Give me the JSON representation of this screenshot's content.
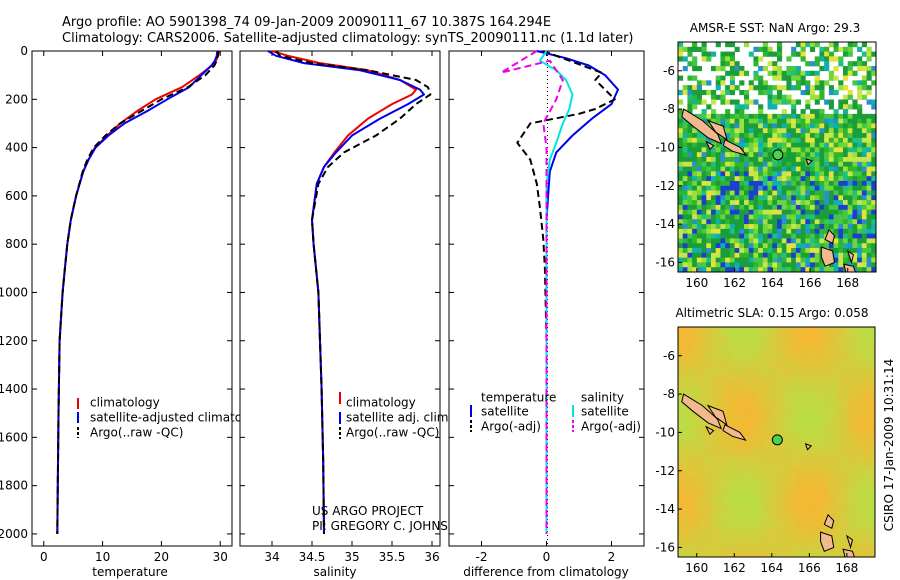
{
  "header": {
    "line1": "Argo profile: AO 5901398_74 09-Jan-2009 20090111_67 10.387S 164.294E",
    "line2": "Climatology: CARS2006. Satellite-adjusted climatology: synTS_20090111.nc (1.1d later)"
  },
  "credits": {
    "project": "US ARGO PROJECT",
    "pi": "PI: GREGORY C. JOHNSON",
    "stamp": "CSIRO 17-Jan-2009 10:31:14"
  },
  "colors": {
    "climatology": "#ee0000",
    "satellite": "#0000ee",
    "argo": "#000000",
    "sal_satellite": "#00e5e5",
    "sal_argo": "#ee00ee",
    "land": "#f2b98f",
    "float_marker": "#4bd14b"
  },
  "chart_data": [
    {
      "type": "line",
      "id": "temperature",
      "xlabel": "temperature",
      "xlim": [
        -2,
        32
      ],
      "ylim": [
        2050,
        0
      ],
      "y_reversed": true,
      "xticks": [
        0,
        10,
        20,
        30
      ],
      "yticks": [
        0,
        200,
        400,
        600,
        800,
        1000,
        1200,
        1400,
        1600,
        1800,
        2000
      ],
      "legend": {
        "position": "bottom-right",
        "entries": [
          "climatology",
          "satellite-adjusted climatology",
          "Argo(..raw -QC)"
        ]
      },
      "series": [
        {
          "name": "climatology",
          "style": "solid",
          "x": [
            29.8,
            29.6,
            29.3,
            28.6,
            26.5,
            23.5,
            19.0,
            15.8,
            13.0,
            10.8,
            8.7,
            7.6,
            6.7,
            5.5,
            4.6,
            4.0,
            3.6,
            3.2,
            2.7,
            2.5,
            2.3
          ],
          "y": [
            0,
            20,
            40,
            60,
            100,
            150,
            200,
            250,
            300,
            350,
            400,
            450,
            500,
            600,
            700,
            800,
            900,
            1000,
            1200,
            1500,
            2000
          ]
        },
        {
          "name": "satellite-adjusted climatology",
          "style": "solid",
          "x": [
            29.5,
            29.4,
            29.1,
            28.5,
            26.8,
            24.7,
            21.0,
            17.5,
            13.7,
            11.0,
            8.8,
            7.6,
            6.7,
            5.5,
            4.6,
            4.0,
            3.6,
            3.2,
            2.7,
            2.5,
            2.3
          ],
          "y": [
            0,
            20,
            40,
            60,
            100,
            150,
            200,
            250,
            300,
            350,
            400,
            450,
            500,
            600,
            700,
            800,
            900,
            1000,
            1200,
            1500,
            2000
          ]
        },
        {
          "name": "Argo(..raw -QC)",
          "style": "dashed",
          "x": [
            29.7,
            29.6,
            29.4,
            29.0,
            27.5,
            24.5,
            20.0,
            16.5,
            13.0,
            10.5,
            8.5,
            7.4,
            6.6,
            5.5,
            4.6,
            4.0,
            3.6,
            3.2,
            2.7,
            2.5,
            2.3
          ],
          "y": [
            0,
            20,
            40,
            60,
            100,
            150,
            200,
            250,
            300,
            350,
            400,
            450,
            500,
            600,
            700,
            800,
            900,
            1000,
            1200,
            1500,
            2000
          ]
        }
      ]
    },
    {
      "type": "line",
      "id": "salinity",
      "xlabel": "salinity",
      "xlim": [
        33.6,
        36.1
      ],
      "ylim": [
        2050,
        0
      ],
      "y_reversed": true,
      "xticks": [
        34,
        34.5,
        35,
        35.5,
        36
      ],
      "legend": {
        "position": "bottom-right",
        "entries": [
          "climatology",
          "satellite adj. clim.",
          "Argo(..raw -QC)"
        ]
      },
      "series": [
        {
          "name": "climatology",
          "style": "solid",
          "x": [
            34.0,
            34.2,
            34.6,
            35.2,
            35.6,
            35.8,
            35.75,
            35.5,
            35.2,
            34.95,
            34.78,
            34.65,
            34.56,
            34.5,
            34.52,
            34.55,
            34.58,
            34.6,
            34.62,
            34.64,
            34.65
          ],
          "y": [
            0,
            20,
            50,
            80,
            120,
            160,
            180,
            220,
            280,
            350,
            420,
            480,
            550,
            700,
            800,
            900,
            1000,
            1200,
            1400,
            1700,
            2000
          ]
        },
        {
          "name": "satellite adj. clim.",
          "style": "solid",
          "x": [
            33.95,
            34.05,
            34.4,
            35.1,
            35.6,
            35.85,
            35.9,
            35.7,
            35.35,
            35.0,
            34.8,
            34.65,
            34.56,
            34.5,
            34.52,
            34.55,
            34.58,
            34.6,
            34.62,
            34.64,
            34.65
          ],
          "y": [
            0,
            20,
            50,
            80,
            120,
            160,
            180,
            220,
            280,
            350,
            420,
            480,
            550,
            700,
            800,
            900,
            1000,
            1200,
            1400,
            1700,
            2000
          ]
        },
        {
          "name": "Argo(..raw -QC)",
          "style": "dashed",
          "x": [
            34.05,
            34.1,
            34.5,
            35.2,
            35.8,
            35.95,
            35.98,
            35.8,
            35.6,
            35.3,
            34.9,
            34.7,
            34.58,
            34.5,
            34.52,
            34.55,
            34.58,
            34.6,
            34.62,
            34.64,
            34.65
          ],
          "y": [
            0,
            20,
            50,
            80,
            120,
            150,
            180,
            220,
            280,
            350,
            420,
            480,
            550,
            700,
            800,
            900,
            1000,
            1200,
            1400,
            1700,
            2000
          ]
        }
      ]
    },
    {
      "type": "line",
      "id": "difference",
      "xlabel": "difference from climatology",
      "xlim": [
        -3,
        3
      ],
      "ylim": [
        2050,
        0
      ],
      "y_reversed": true,
      "xticks": [
        -2,
        0,
        2
      ],
      "legend": {
        "position": "bottom-right",
        "entries": [
          "temperature",
          "satellite",
          "Argo(-adj)",
          "salinity",
          "satellite",
          "Argo(-adj)"
        ]
      },
      "series": [
        {
          "name": "temperature satellite",
          "style": "solid",
          "x": [
            -0.3,
            0.6,
            1.3,
            1.8,
            2.2,
            2.0,
            1.4,
            0.8,
            0.3,
            0.1,
            0.05,
            0.0,
            0.0,
            0.0,
            0.0,
            0.0,
            0.0
          ],
          "y": [
            0,
            30,
            60,
            100,
            160,
            220,
            280,
            350,
            420,
            500,
            600,
            700,
            800,
            1000,
            1400,
            1700,
            2000
          ]
        },
        {
          "name": "temperature Argo(-adj)",
          "style": "dashed",
          "x": [
            -0.1,
            0.9,
            1.7,
            1.5,
            2.1,
            1.5,
            1.0,
            -0.5,
            -0.9,
            -0.5,
            -0.3,
            -0.2,
            -0.1,
            -0.05,
            0.0,
            0.0,
            0.0
          ],
          "y": [
            0,
            50,
            90,
            120,
            200,
            240,
            260,
            300,
            380,
            450,
            550,
            650,
            780,
            900,
            1200,
            1600,
            2000
          ]
        },
        {
          "name": "salinity satellite",
          "style": "solid",
          "x": [
            0.0,
            -0.2,
            0.3,
            0.6,
            0.8,
            0.7,
            0.5,
            0.3,
            0.1,
            0.0,
            0.0,
            0.0,
            0.0,
            0.0
          ],
          "y": [
            0,
            40,
            80,
            120,
            180,
            240,
            300,
            380,
            450,
            550,
            700,
            1000,
            1500,
            2000
          ]
        },
        {
          "name": "salinity Argo(-adj)",
          "style": "dashed",
          "x": [
            -0.3,
            -1.4,
            -0.5,
            0.1,
            0.5,
            0.3,
            -0.1,
            0.0,
            0.0,
            0.0,
            0.0
          ],
          "y": [
            0,
            90,
            60,
            40,
            120,
            200,
            300,
            400,
            600,
            1000,
            2000
          ]
        }
      ]
    },
    {
      "type": "heatmap",
      "id": "sst_map",
      "title": "AMSR-E SST: NaN Argo: 29.3",
      "xlim": [
        159,
        169.5
      ],
      "ylim": [
        -16.5,
        -4.5
      ],
      "xticks": [
        160,
        162,
        164,
        166,
        168
      ],
      "yticks": [
        -6,
        -8,
        -10,
        -12,
        -14,
        -16
      ],
      "float_position": {
        "lon": 164.294,
        "lat": -10.387
      }
    },
    {
      "type": "heatmap",
      "id": "sla_map",
      "title": "Altimetric SLA: 0.15 Argo: 0.058",
      "xlim": [
        159,
        169.5
      ],
      "ylim": [
        -16.5,
        -4.5
      ],
      "xticks": [
        160,
        162,
        164,
        166,
        168
      ],
      "yticks": [
        -6,
        -8,
        -10,
        -12,
        -14,
        -16
      ],
      "float_position": {
        "lon": 164.294,
        "lat": -10.387
      }
    }
  ]
}
